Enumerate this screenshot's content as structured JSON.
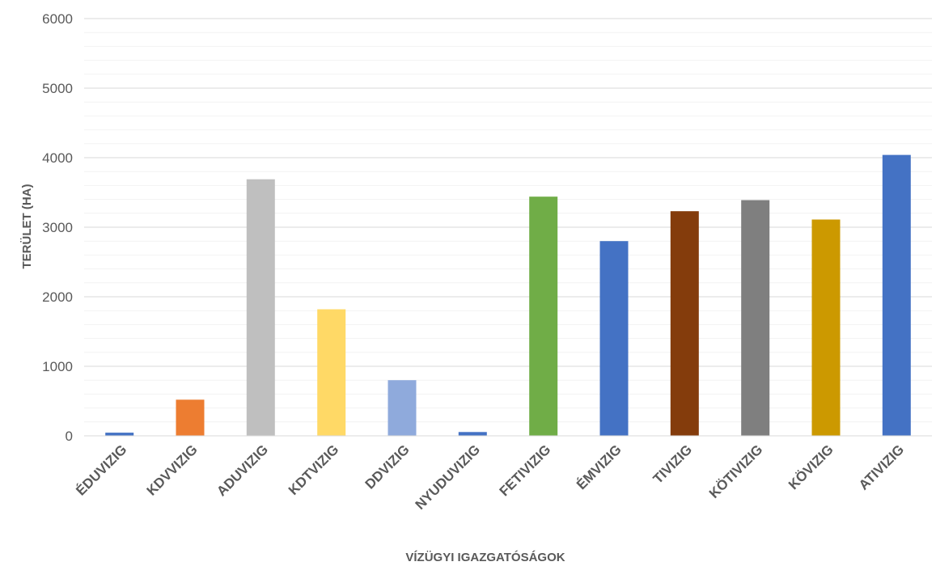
{
  "chart_data": {
    "type": "bar",
    "categories": [
      "ÉDUVIZIG",
      "KDVVIZIG",
      "ADUVIZIG",
      "KDTVIZIG",
      "DDVIZIG",
      "NYUDUVIZIG",
      "FETIVIZIG",
      "ÉMVIZIG",
      "TIVIZIG",
      "KÖTIVIZIG",
      "KÖVIZIG",
      "ATIVIZIG"
    ],
    "values": [
      45,
      520,
      3690,
      1820,
      800,
      55,
      3440,
      2800,
      3230,
      3390,
      3110,
      4040
    ],
    "colors": [
      "#4472C4",
      "#ED7D31",
      "#BFBFBF",
      "#FFD966",
      "#8FAADC",
      "#4472C4",
      "#70AD47",
      "#4472C4",
      "#843C0C",
      "#7F7F7F",
      "#CC9900",
      "#4472C4"
    ],
    "title": "",
    "xlabel": "VÍZÜGYI IGAZGATÓSÁGOK",
    "ylabel": "TERÜLET (HA)",
    "ylim": [
      0,
      6000
    ],
    "yticks": [
      0,
      1000,
      2000,
      3000,
      4000,
      5000,
      6000
    ],
    "minor_step": 200,
    "grid": true,
    "legend": "none"
  }
}
